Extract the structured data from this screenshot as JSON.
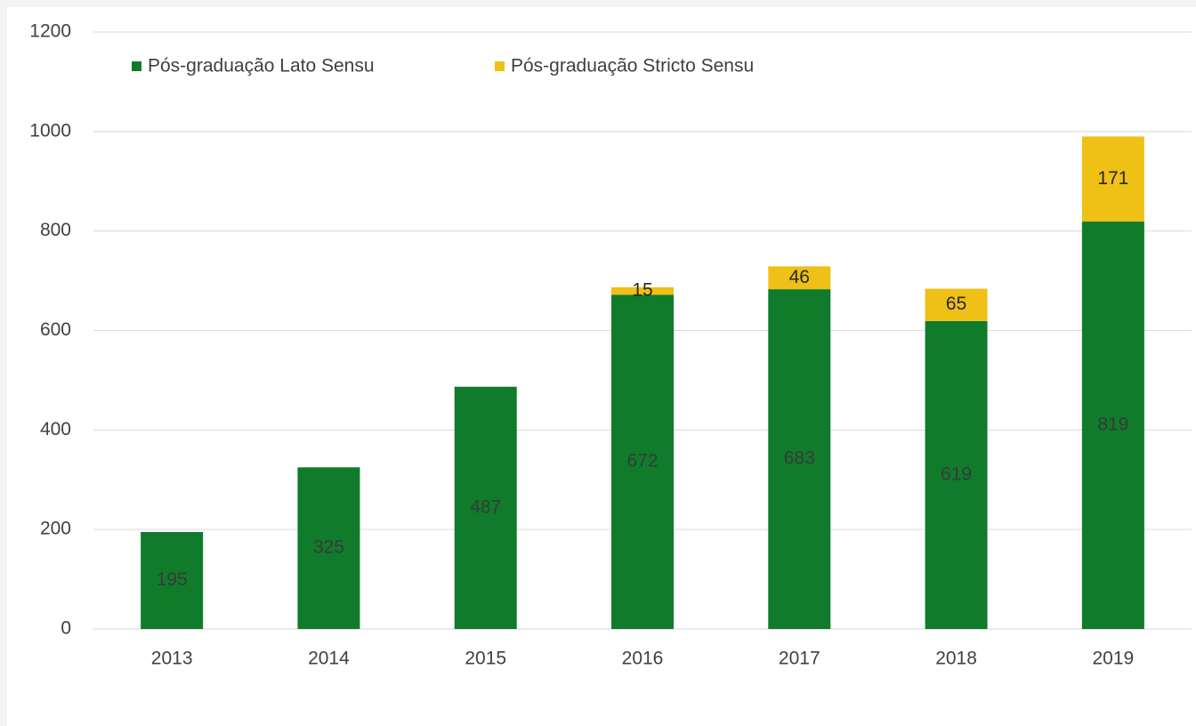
{
  "chart_data": {
    "type": "stacked_bar",
    "categories": [
      "2013",
      "2014",
      "2015",
      "2016",
      "2017",
      "2018",
      "2019"
    ],
    "series": [
      {
        "name": "Pós-graduação Lato Sensu",
        "color": "#0f7b2b",
        "values": [
          195,
          325,
          487,
          672,
          683,
          619,
          819
        ]
      },
      {
        "name": "Pós-graduação Stricto Sensu",
        "color": "#efc015",
        "values": [
          null,
          null,
          null,
          15,
          46,
          65,
          171
        ]
      }
    ],
    "ylim": [
      0,
      1200
    ],
    "yticks": [
      0,
      200,
      400,
      600,
      800,
      1000,
      1200
    ],
    "grid": true,
    "legend": "top-left"
  }
}
